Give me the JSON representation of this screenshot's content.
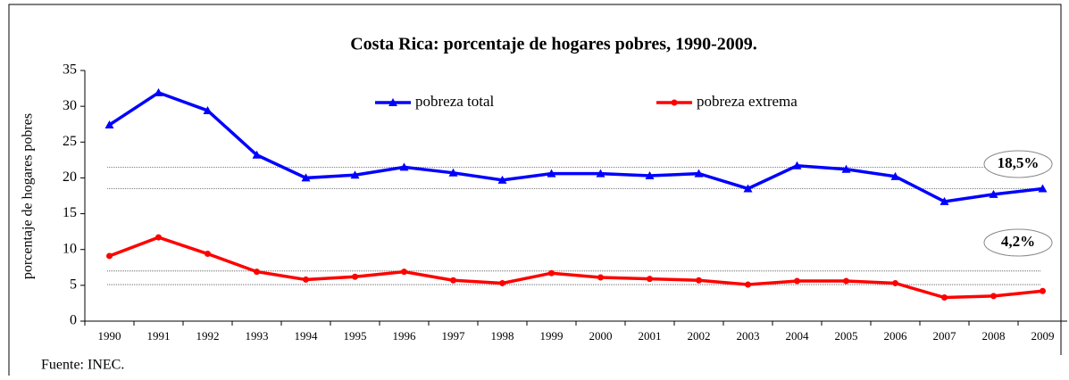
{
  "chart_data": {
    "type": "line",
    "title": "Costa Rica: porcentaje de hogares pobres, 1990-2009.",
    "ylabel": "porcentaje de hogares pobres",
    "source": "Fuente: INEC.",
    "categories": [
      "1990",
      "1991",
      "1992",
      "1993",
      "1994",
      "1995",
      "1996",
      "1997",
      "1998",
      "1999",
      "2000",
      "2001",
      "2002",
      "2003",
      "2004",
      "2005",
      "2006",
      "2007",
      "2008",
      "2009"
    ],
    "series": [
      {
        "name": "pobreza total",
        "color": "#0000ff",
        "marker": "triangle",
        "values": [
          27.4,
          31.9,
          29.4,
          23.2,
          20.0,
          20.4,
          21.5,
          20.7,
          19.7,
          20.6,
          20.6,
          20.3,
          20.6,
          18.5,
          21.7,
          21.2,
          20.2,
          16.7,
          17.7,
          18.5
        ]
      },
      {
        "name": "pobreza extrema",
        "color": "#ff0000",
        "marker": "circle",
        "values": [
          9.1,
          11.7,
          9.4,
          6.9,
          5.8,
          6.2,
          6.9,
          5.7,
          5.3,
          6.7,
          6.1,
          5.9,
          5.7,
          5.1,
          5.6,
          5.6,
          5.3,
          3.3,
          3.5,
          4.2
        ]
      }
    ],
    "reference_lines": [
      21.5,
      18.5,
      7.0,
      5.1
    ],
    "annotations": [
      {
        "text": "18,5%",
        "y": 18.5
      },
      {
        "text": "4,2%",
        "y": 4.2
      }
    ],
    "ylim": [
      0,
      35
    ],
    "yticks": [
      0,
      5,
      10,
      15,
      20,
      25,
      30,
      35
    ]
  }
}
